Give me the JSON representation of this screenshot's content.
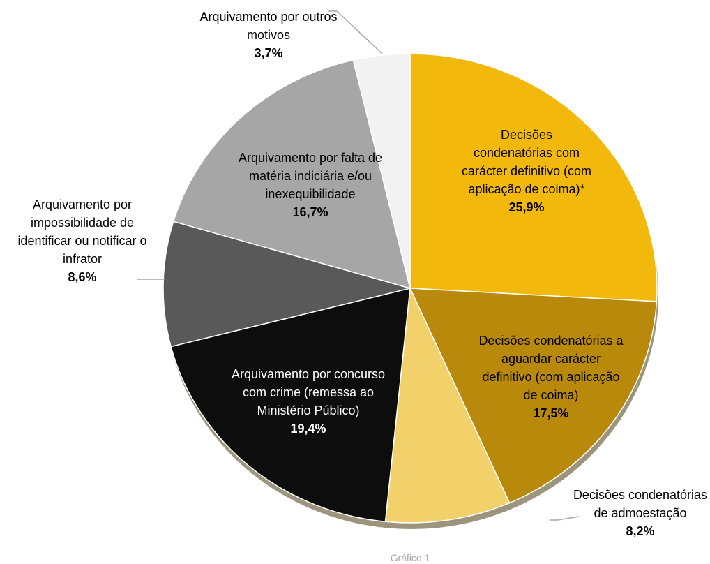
{
  "chart_data": {
    "type": "pie",
    "categories": [
      "Decisões condenatórias com carácter definitivo (com aplicação de coima)*",
      "Decisões condenatórias a aguardar carácter definitivo (com aplicação de coima)",
      "Decisões condenatórias de admoestação",
      "Arquivamento por concurso com crime (remessa ao Ministério Público)",
      "Arquivamento por impossibilidade de identificar ou notificar o infrator",
      "Arquivamento por falta de matéria indiciária e/ou inexequibilidade",
      "Arquivamento por outros motivos"
    ],
    "values": [
      25.9,
      17.5,
      8.2,
      19.4,
      8.6,
      16.7,
      3.7
    ],
    "value_labels": [
      "25,9%",
      "17,5%",
      "8,2%",
      "19,4%",
      "8,6%",
      "16,7%",
      "3,7%"
    ],
    "colors": [
      "#f2b80c",
      "#b8890a",
      "#f2d16b",
      "#0d0d0d",
      "#595959",
      "#a6a6a6",
      "#f2f2f2"
    ],
    "caption": "Gráfico 1"
  }
}
